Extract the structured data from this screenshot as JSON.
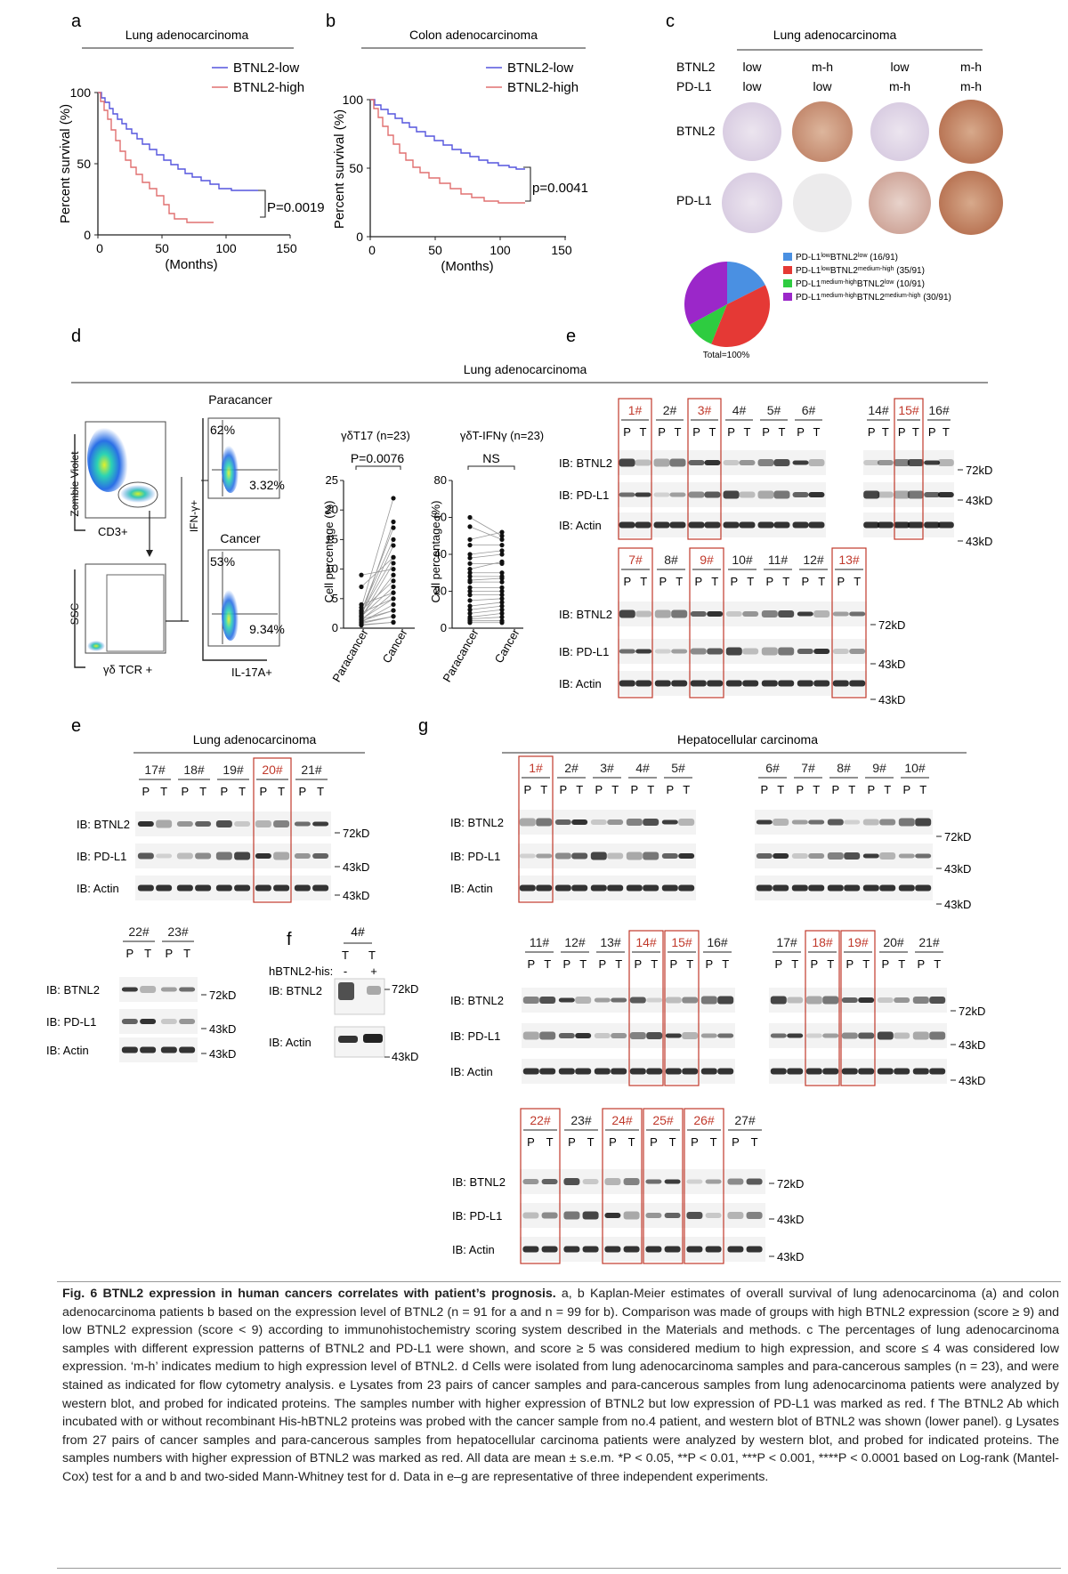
{
  "panel_letters": {
    "a": "a",
    "b": "b",
    "c": "c",
    "d": "d",
    "e_top": "e",
    "e_bottom": "e",
    "f": "f",
    "g": "g"
  },
  "km": [
    {
      "id": "a",
      "header": "Lung adenocarcinoma",
      "ylabel": "Percent survival (%)",
      "xlabel": "(Months)",
      "yticks": [
        "0",
        "50",
        "100"
      ],
      "xticks": [
        "0",
        "50",
        "100",
        "150"
      ],
      "legend": [
        {
          "label": "BTNL2-low",
          "color": "#5555dd"
        },
        {
          "label": "BTNL2-high",
          "color": "#e07070"
        }
      ],
      "pvalue": "P=0.0019"
    },
    {
      "id": "b",
      "header": "Colon adenocarcinoma",
      "ylabel": "Percent survival (%)",
      "xlabel": "(Months)",
      "yticks": [
        "0",
        "50",
        "100"
      ],
      "xticks": [
        "0",
        "50",
        "100",
        "150"
      ],
      "legend": [
        {
          "label": "BTNL2-low",
          "color": "#5555dd"
        },
        {
          "label": "BTNL2-high",
          "color": "#e07070"
        }
      ],
      "pvalue": "p=0.0041"
    }
  ],
  "panel_c": {
    "header": "Lung adenocarcinoma",
    "row_btnl2": "BTNL2",
    "row_pdl1": "PD-L1",
    "col_top": [
      "low",
      "m-h",
      "low",
      "m-h"
    ],
    "col_bottom": [
      "low",
      "low",
      "m-h",
      "m-h"
    ],
    "pie_total": "Total=100%",
    "pie_legend": [
      {
        "base": "PD-L1",
        "sup1": "low",
        "mid": "BTNL2",
        "sup2": "low",
        "count": "(16/91)",
        "color": "#4a90e2"
      },
      {
        "base": "PD-L1",
        "sup1": "low",
        "mid": "BTNL2",
        "sup2": "medium-high",
        "count": "(35/91)",
        "color": "#e53935"
      },
      {
        "base": "PD-L1",
        "sup1": "medium-high",
        "mid": "BTNL2",
        "sup2": "low",
        "count": "(10/91)",
        "color": "#2ecc40"
      },
      {
        "base": "PD-L1",
        "sup1": "medium-high",
        "mid": "BTNL2",
        "sup2": "medium-high",
        "count": "(30/91)",
        "color": "#9b27c9"
      }
    ]
  },
  "panel_d": {
    "header": "Lung adenocarcinoma",
    "flow": {
      "zombie": "Zombie Violet",
      "cd3": "CD3+",
      "ssc": "SSC",
      "gdtcr": "γδ TCR +",
      "ifn": "IFN-γ+",
      "il17": "IL-17A+",
      "paracancer": "Paracancer",
      "cancer": "Cancer",
      "p_ul": "62%",
      "p_lr": "3.32%",
      "c_ul": "53%",
      "c_lr": "9.34%"
    },
    "dot1": {
      "title": "γδT17 (n=23)",
      "stat": "P=0.0076",
      "ylabel": "Cell percentage (%)",
      "yticks": [
        "0",
        "5",
        "10",
        "15",
        "20",
        "25"
      ],
      "cats": [
        "Paracancer",
        "Cancer"
      ]
    },
    "dot2": {
      "title": "γδT-IFNγ (n=23)",
      "stat": "NS",
      "ylabel": "Cell percentage (%)",
      "yticks": [
        "0",
        "20",
        "40",
        "60",
        "80"
      ],
      "cats": [
        "Paracancer",
        "Cancer"
      ]
    }
  },
  "blots": {
    "ib_btnl2": "IB: BTNL2",
    "ib_pdl1": "IB: PD-L1",
    "ib_actin": "IB: Actin",
    "kd72": "72kD",
    "kd43": "43kD",
    "p": "P",
    "t": "T",
    "e_header": "Lung adenocarcinoma",
    "g_header": "Hepatocellular carcinoma",
    "e1_samples": [
      "1#",
      "2#",
      "3#",
      "4#",
      "5#",
      "6#"
    ],
    "e1_red": [
      "1#",
      "3#"
    ],
    "e2_samples": [
      "14#",
      "15#",
      "16#"
    ],
    "e2_red": [
      "15#"
    ],
    "e3_samples": [
      "7#",
      "8#",
      "9#",
      "10#",
      "11#",
      "12#",
      "13#"
    ],
    "e3_red": [
      "7#",
      "9#",
      "13#"
    ],
    "e4_samples": [
      "17#",
      "18#",
      "19#",
      "20#",
      "21#"
    ],
    "e4_red": [
      "20#"
    ],
    "e5_samples": [
      "22#",
      "23#"
    ],
    "f": {
      "sample": "4#",
      "his": "hBTNL2-his:",
      "minus": "-",
      "plus": "+"
    },
    "g1_samples": [
      "1#",
      "2#",
      "3#",
      "4#",
      "5#"
    ],
    "g1_red": [
      "1#"
    ],
    "g2_samples": [
      "6#",
      "7#",
      "8#",
      "9#",
      "10#"
    ],
    "g2_red": [],
    "g3_samples": [
      "11#",
      "12#",
      "13#",
      "14#",
      "15#",
      "16#"
    ],
    "g3_red": [
      "14#",
      "15#"
    ],
    "g4_samples": [
      "17#",
      "18#",
      "19#",
      "20#",
      "21#"
    ],
    "g4_red": [
      "18#",
      "19#"
    ],
    "g5_samples": [
      "22#",
      "23#",
      "24#",
      "25#",
      "26#",
      "27#"
    ],
    "g5_red": [
      "22#",
      "24#",
      "25#",
      "26#"
    ]
  },
  "caption": {
    "title": "Fig. 6 BTNL2 expression in human cancers correlates with patient’s prognosis.",
    "body": " a, b Kaplan-Meier estimates of overall survival of lung adenocarcinoma (a) and colon adenocarcinoma patients b based on the expression level of BTNL2 (n = 91 for a and n = 99 for b). Comparison was made of groups with high BTNL2 expression (score ≥ 9) and low BTNL2 expression (score < 9) according to immunohistochemistry scoring system described in the Materials and methods. c The percentages of lung adenocarcinoma samples with different expression patterns of BTNL2 and PD-L1 were shown, and score ≥ 5 was considered medium to high expression, and score ≤ 4 was considered low expression. ‘m-h’ indicates medium to high expression level of BTNL2. d Cells were isolated from lung adenocarcinoma samples and para-cancerous samples (n = 23), and were stained as indicated for flow cytometry analysis. e Lysates from 23 pairs of cancer samples and para-cancerous samples from lung adenocarcinoma patients were analyzed by western blot, and probed for indicated proteins. The samples number with higher expression of BTNL2 but low expression of PD-L1 was marked as red. f The BTNL2 Ab which incubated with or without recombinant His-hBTNL2 proteins was probed with the cancer sample from no.4 patient, and western blot of BTNL2 was shown (lower panel). g Lysates from 27 pairs of cancer samples and para-cancerous samples from hepatocellular carcinoma patients were analyzed by western blot, and probed for indicated proteins. The samples numbers with higher expression of BTNL2 was marked as red. All data are mean ± s.e.m. *P < 0.05, **P < 0.01, ***P < 0.001, ****P < 0.0001 based on Log-rank (Mantel-Cox) test for a and b and two-sided Mann-Whitney test for d. Data in e–g are representative of three independent experiments."
  }
}
